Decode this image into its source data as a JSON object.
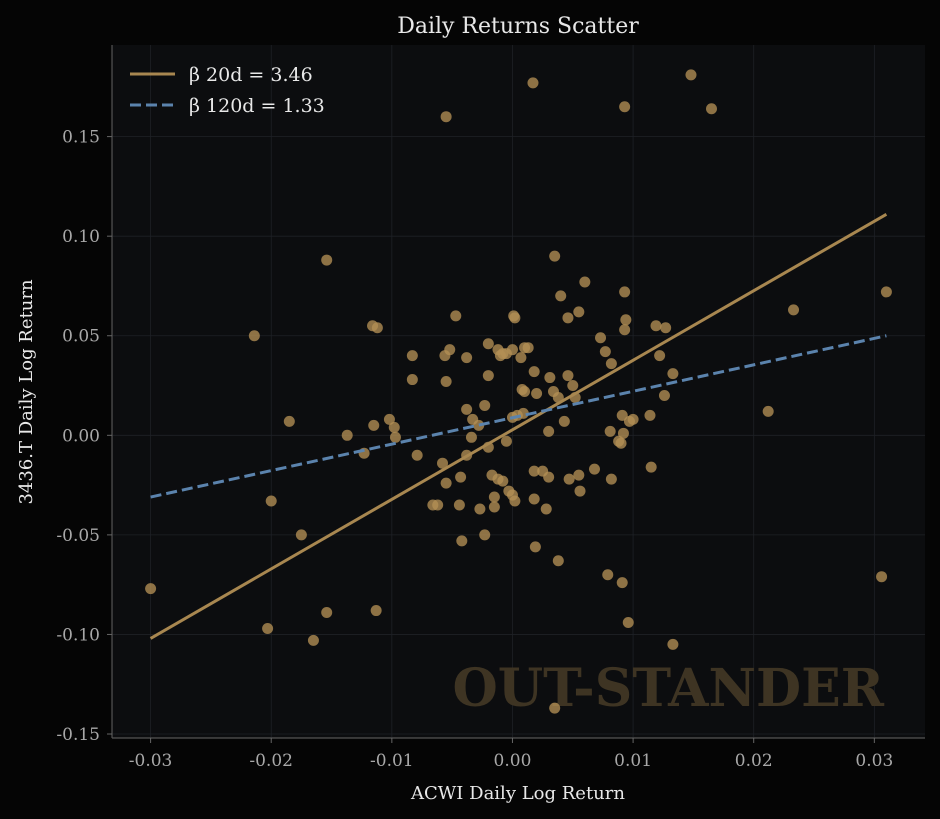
{
  "chart_data": {
    "type": "scatter",
    "title": "Daily Returns Scatter",
    "xlabel": "ACWI Daily Log Return",
    "ylabel": "3436.T Daily Log Return",
    "xlim": [
      -0.0332,
      0.0342
    ],
    "ylim": [
      -0.152,
      0.196
    ],
    "x_ticks": [
      -0.03,
      -0.02,
      -0.01,
      0.0,
      0.01,
      0.02,
      0.03
    ],
    "x_tick_labels": [
      "-0.03",
      "-0.02",
      "-0.01",
      "0.00",
      "0.01",
      "0.02",
      "0.03"
    ],
    "y_ticks": [
      -0.15,
      -0.1,
      -0.05,
      0.0,
      0.05,
      0.1,
      0.15
    ],
    "y_tick_labels": [
      "-0.15",
      "-0.10",
      "-0.05",
      "0.00",
      "0.05",
      "0.10",
      "0.15"
    ],
    "grid": true,
    "legend_position": "top-left",
    "watermark": "OUT-STANDER",
    "colors": {
      "background": "#050505",
      "plot_background": "#0c0d0f",
      "points": "#b38f54",
      "line_20d": "#a88750",
      "line_120d": "#5b83ad",
      "text": "#e8e8e8",
      "tick_text": "#a8a8a8",
      "watermark": "#3e3423",
      "axis": "#555555"
    },
    "lines": [
      {
        "name": "β 20d = 3.46",
        "style": "solid",
        "color": "#a88750",
        "x": [
          -0.03,
          0.031
        ],
        "y": [
          -0.102,
          0.111
        ]
      },
      {
        "name": "β 120d = 1.33",
        "style": "dashed",
        "color": "#5b83ad",
        "x": [
          -0.03,
          0.031
        ],
        "y": [
          -0.031,
          0.05
        ]
      }
    ],
    "points": [
      {
        "x": 0.0017,
        "y": 0.177
      },
      {
        "x": 0.0148,
        "y": 0.181
      },
      {
        "x": 0.0093,
        "y": 0.165
      },
      {
        "x": 0.0165,
        "y": 0.164
      },
      {
        "x": -0.0055,
        "y": 0.16
      },
      {
        "x": 0.0035,
        "y": 0.09
      },
      {
        "x": -0.0154,
        "y": 0.088
      },
      {
        "x": 0.031,
        "y": 0.072
      },
      {
        "x": 0.0233,
        "y": 0.063
      },
      {
        "x": 0.006,
        "y": 0.077
      },
      {
        "x": 0.0093,
        "y": 0.072
      },
      {
        "x": -0.0214,
        "y": 0.05
      },
      {
        "x": -0.0116,
        "y": 0.055
      },
      {
        "x": -0.0112,
        "y": 0.054
      },
      {
        "x": -0.0047,
        "y": 0.06
      },
      {
        "x": 0.0001,
        "y": 0.06
      },
      {
        "x": 0.0002,
        "y": 0.059
      },
      {
        "x": 0.004,
        "y": 0.07
      },
      {
        "x": 0.0055,
        "y": 0.062
      },
      {
        "x": 0.0046,
        "y": 0.059
      },
      {
        "x": 0.0094,
        "y": 0.058
      },
      {
        "x": 0.0093,
        "y": 0.053
      },
      {
        "x": 0.0119,
        "y": 0.055
      },
      {
        "x": 0.0127,
        "y": 0.054
      },
      {
        "x": -0.0083,
        "y": 0.04
      },
      {
        "x": -0.0056,
        "y": 0.04
      },
      {
        "x": -0.0052,
        "y": 0.043
      },
      {
        "x": -0.0038,
        "y": 0.039
      },
      {
        "x": -0.002,
        "y": 0.046
      },
      {
        "x": -0.0012,
        "y": 0.043
      },
      {
        "x": -0.001,
        "y": 0.04
      },
      {
        "x": -0.0008,
        "y": 0.041
      },
      {
        "x": -0.0005,
        "y": 0.041
      },
      {
        "x": 0.0,
        "y": 0.043
      },
      {
        "x": 0.0007,
        "y": 0.039
      },
      {
        "x": 0.001,
        "y": 0.044
      },
      {
        "x": 0.0013,
        "y": 0.044
      },
      {
        "x": 0.0073,
        "y": 0.049
      },
      {
        "x": 0.0077,
        "y": 0.042
      },
      {
        "x": 0.0082,
        "y": 0.036
      },
      {
        "x": 0.0122,
        "y": 0.04
      },
      {
        "x": 0.0133,
        "y": 0.031
      },
      {
        "x": -0.0083,
        "y": 0.028
      },
      {
        "x": -0.0055,
        "y": 0.027
      },
      {
        "x": -0.002,
        "y": 0.03
      },
      {
        "x": 0.0008,
        "y": 0.023
      },
      {
        "x": 0.001,
        "y": 0.022
      },
      {
        "x": 0.0018,
        "y": 0.032
      },
      {
        "x": 0.002,
        "y": 0.021
      },
      {
        "x": 0.0031,
        "y": 0.029
      },
      {
        "x": 0.0034,
        "y": 0.022
      },
      {
        "x": 0.0038,
        "y": 0.019
      },
      {
        "x": 0.0046,
        "y": 0.03
      },
      {
        "x": 0.005,
        "y": 0.025
      },
      {
        "x": 0.0052,
        "y": 0.019
      },
      {
        "x": 0.0126,
        "y": 0.02
      },
      {
        "x": -0.0185,
        "y": 0.007
      },
      {
        "x": -0.0102,
        "y": 0.008
      },
      {
        "x": -0.0115,
        "y": 0.005
      },
      {
        "x": -0.0098,
        "y": 0.004
      },
      {
        "x": -0.0137,
        "y": 0.0
      },
      {
        "x": -0.0097,
        "y": -0.001
      },
      {
        "x": -0.0038,
        "y": 0.013
      },
      {
        "x": -0.0033,
        "y": 0.008
      },
      {
        "x": -0.0028,
        "y": 0.005
      },
      {
        "x": -0.0023,
        "y": 0.015
      },
      {
        "x": -0.002,
        "y": -0.006
      },
      {
        "x": -0.0034,
        "y": -0.001
      },
      {
        "x": -0.0005,
        "y": -0.003
      },
      {
        "x": 0.0,
        "y": 0.009
      },
      {
        "x": 0.0004,
        "y": 0.01
      },
      {
        "x": 0.0009,
        "y": 0.011
      },
      {
        "x": 0.003,
        "y": 0.002
      },
      {
        "x": 0.0043,
        "y": 0.007
      },
      {
        "x": 0.0081,
        "y": 0.002
      },
      {
        "x": 0.0088,
        "y": -0.003
      },
      {
        "x": 0.009,
        "y": -0.004
      },
      {
        "x": 0.0091,
        "y": 0.01
      },
      {
        "x": 0.0092,
        "y": 0.001
      },
      {
        "x": 0.0097,
        "y": 0.007
      },
      {
        "x": 0.01,
        "y": 0.008
      },
      {
        "x": 0.0114,
        "y": 0.01
      },
      {
        "x": -0.0123,
        "y": -0.009
      },
      {
        "x": -0.0079,
        "y": -0.01
      },
      {
        "x": -0.0058,
        "y": -0.014
      },
      {
        "x": -0.0055,
        "y": -0.024
      },
      {
        "x": -0.0043,
        "y": -0.021
      },
      {
        "x": -0.0038,
        "y": -0.01
      },
      {
        "x": -0.0017,
        "y": -0.02
      },
      {
        "x": -0.0012,
        "y": -0.022
      },
      {
        "x": -0.0008,
        "y": -0.023
      },
      {
        "x": -0.0003,
        "y": -0.028
      },
      {
        "x": 0.0,
        "y": -0.03
      },
      {
        "x": 0.0002,
        "y": -0.033
      },
      {
        "x": 0.0018,
        "y": -0.018
      },
      {
        "x": 0.0025,
        "y": -0.018
      },
      {
        "x": 0.003,
        "y": -0.021
      },
      {
        "x": 0.0047,
        "y": -0.022
      },
      {
        "x": 0.0055,
        "y": -0.02
      },
      {
        "x": 0.0068,
        "y": -0.017
      },
      {
        "x": 0.0082,
        "y": -0.022
      },
      {
        "x": 0.0115,
        "y": -0.016
      },
      {
        "x": 0.0056,
        "y": -0.028
      },
      {
        "x": -0.02,
        "y": -0.033
      },
      {
        "x": -0.0066,
        "y": -0.035
      },
      {
        "x": -0.0062,
        "y": -0.035
      },
      {
        "x": -0.0044,
        "y": -0.035
      },
      {
        "x": -0.0027,
        "y": -0.037
      },
      {
        "x": -0.0015,
        "y": -0.031
      },
      {
        "x": -0.0015,
        "y": -0.036
      },
      {
        "x": 0.0018,
        "y": -0.032
      },
      {
        "x": 0.0028,
        "y": -0.037
      },
      {
        "x": -0.0175,
        "y": -0.05
      },
      {
        "x": -0.0042,
        "y": -0.053
      },
      {
        "x": -0.0023,
        "y": -0.05
      },
      {
        "x": 0.0019,
        "y": -0.056
      },
      {
        "x": 0.0038,
        "y": -0.063
      },
      {
        "x": 0.0079,
        "y": -0.07
      },
      {
        "x": 0.0091,
        "y": -0.074
      },
      {
        "x": 0.0306,
        "y": -0.071
      },
      {
        "x": -0.03,
        "y": -0.077
      },
      {
        "x": -0.0154,
        "y": -0.089
      },
      {
        "x": -0.0113,
        "y": -0.088
      },
      {
        "x": -0.0203,
        "y": -0.097
      },
      {
        "x": -0.0165,
        "y": -0.103
      },
      {
        "x": 0.0096,
        "y": -0.094
      },
      {
        "x": 0.0133,
        "y": -0.105
      },
      {
        "x": 0.0035,
        "y": -0.137
      },
      {
        "x": 0.0212,
        "y": 0.012
      }
    ]
  }
}
